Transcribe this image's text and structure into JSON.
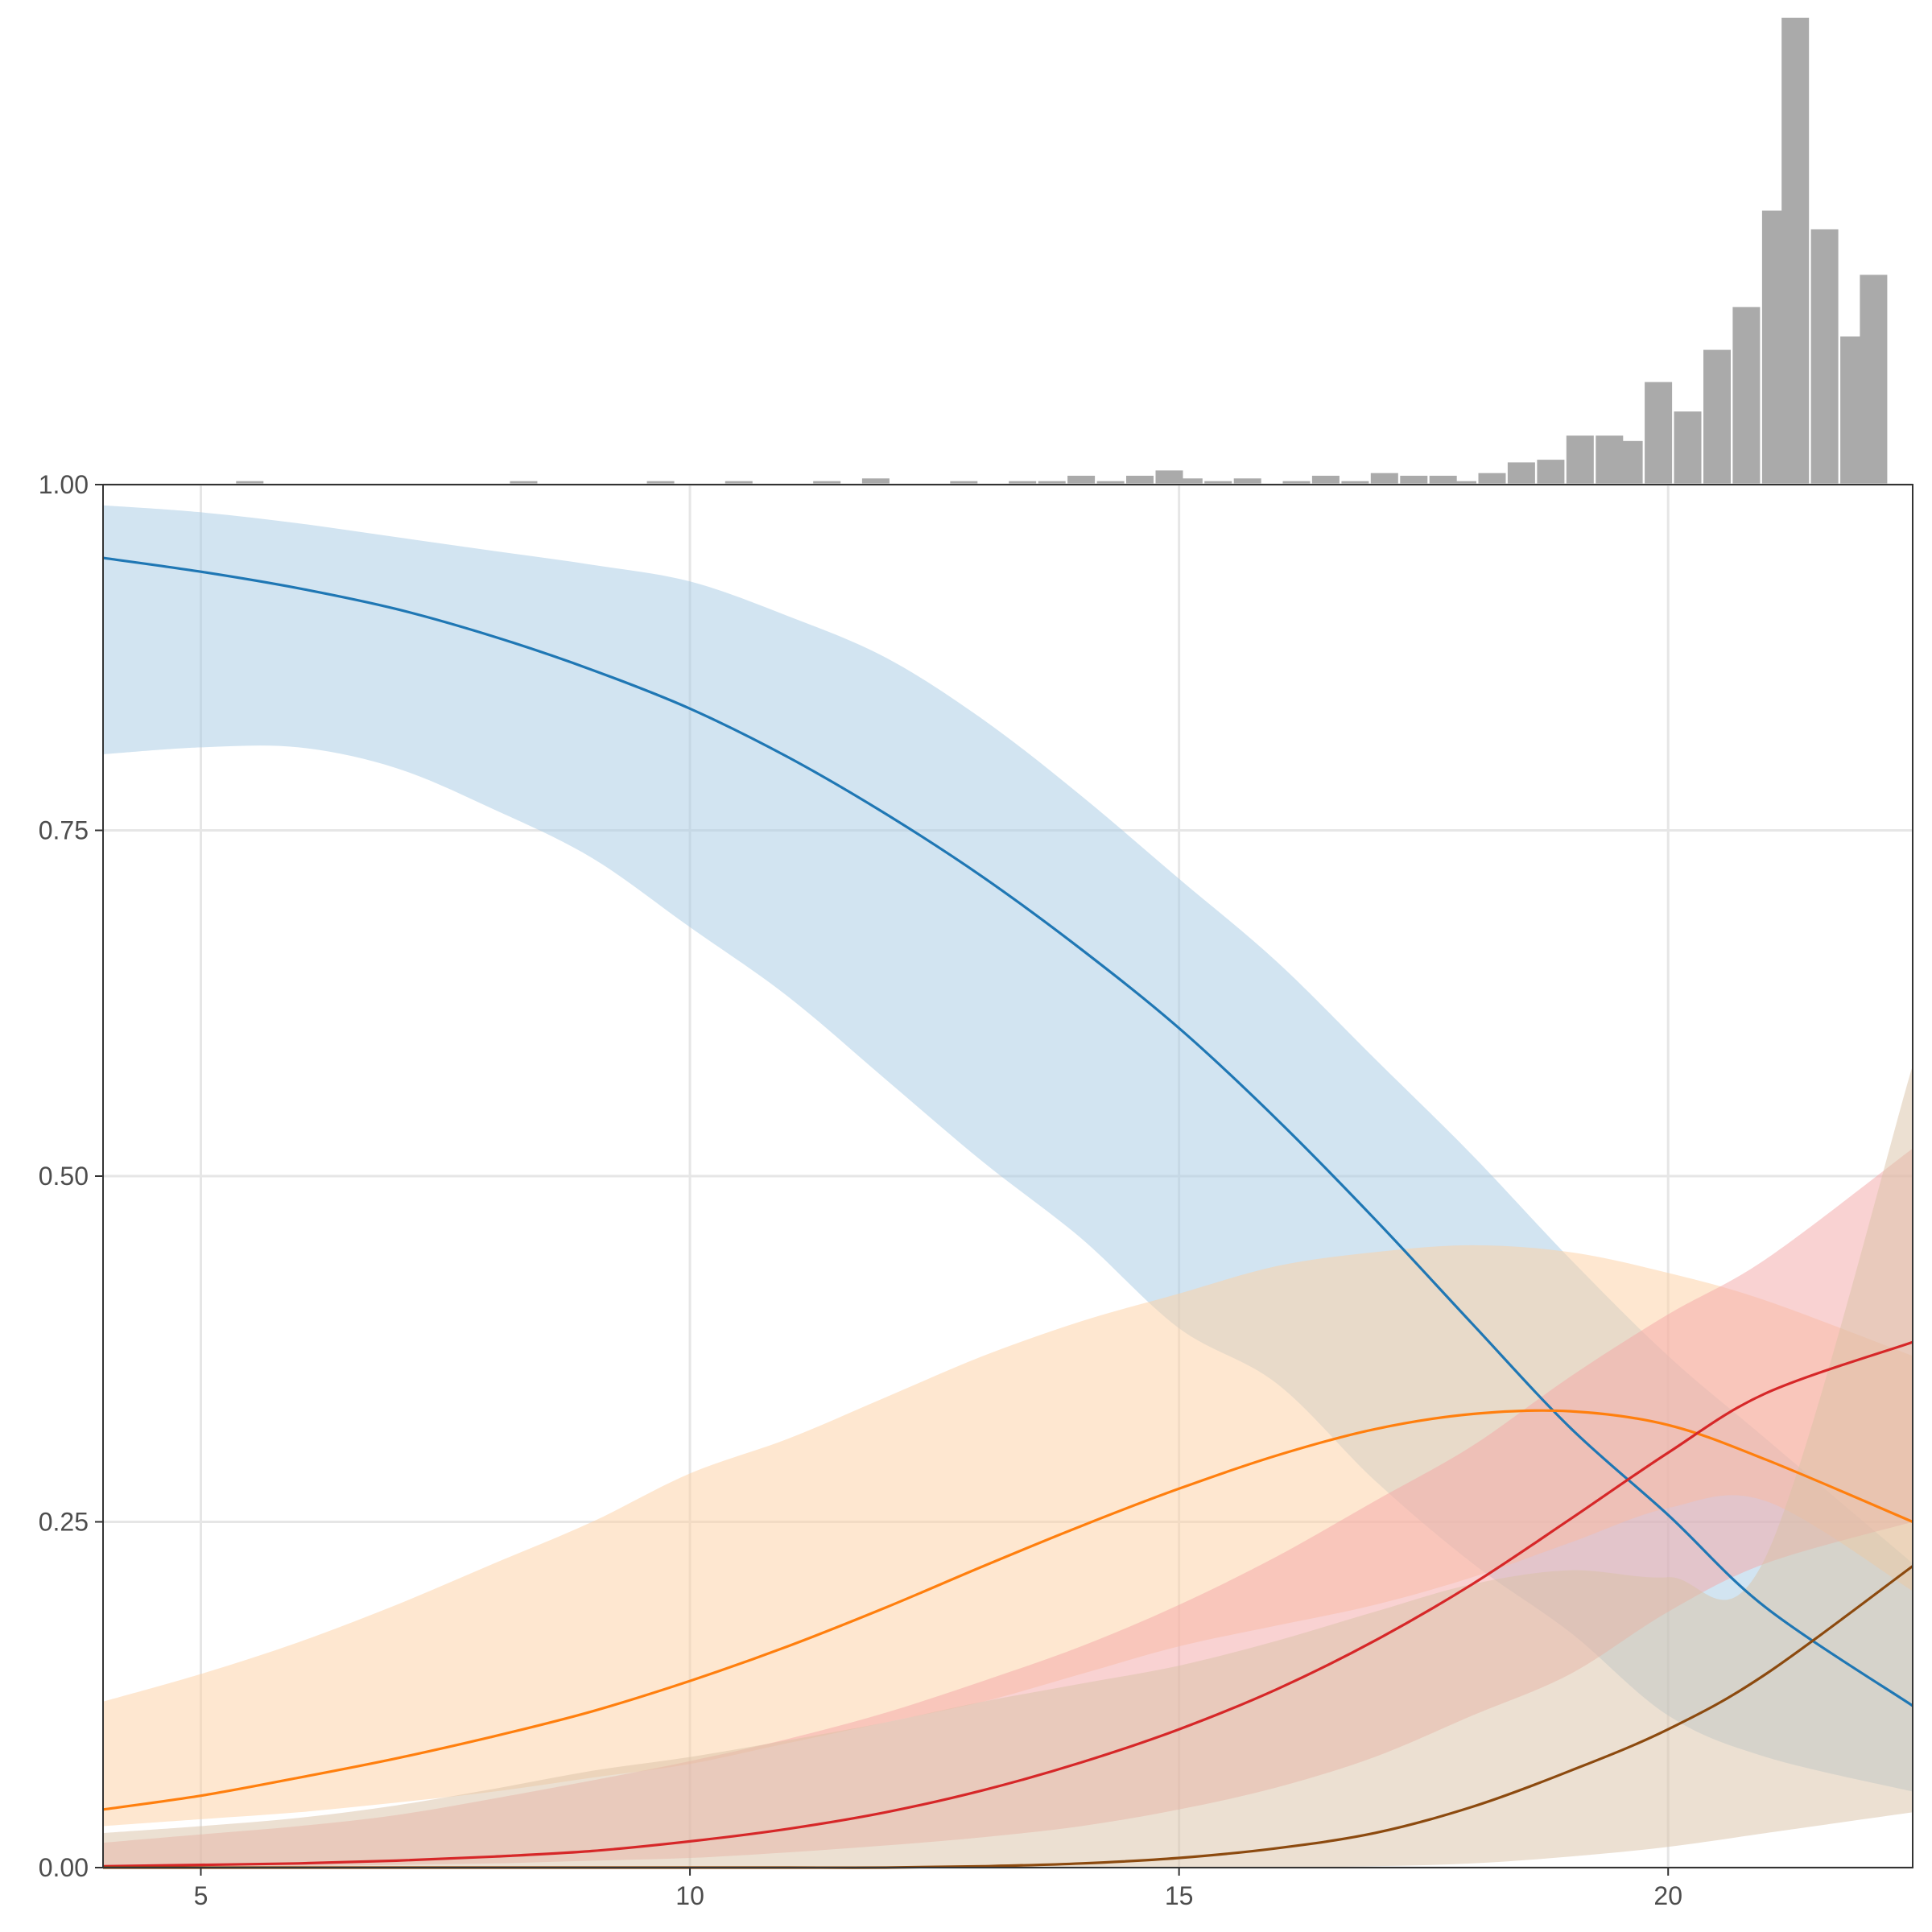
{
  "chart_data": {
    "type": "line",
    "title": "",
    "xlabel": "",
    "ylabel": "",
    "xlim": [
      4,
      22.5
    ],
    "ylim": [
      0,
      1
    ],
    "grid": true,
    "legend": "none",
    "x_ticks": [
      5,
      10,
      15,
      20
    ],
    "y_ticks": [
      0,
      0.25,
      0.5,
      0.75,
      1
    ],
    "x_tick_labels": [
      "5",
      "10",
      "15",
      "20"
    ],
    "y_tick_labels": [
      "0.00",
      "0.25",
      "0.50",
      "0.75",
      "1.00"
    ],
    "series": [
      {
        "color": "#1f77b4",
        "band_color": "#a6c9e3",
        "x": [
          4,
          5,
          6,
          7,
          8,
          9,
          10,
          11,
          12,
          13,
          14,
          15,
          16,
          17,
          18,
          19,
          20,
          21,
          22.5
        ],
        "y": [
          0.947,
          0.937,
          0.925,
          0.91,
          0.89,
          0.866,
          0.838,
          0.803,
          0.762,
          0.716,
          0.664,
          0.607,
          0.541,
          0.469,
          0.393,
          0.318,
          0.255,
          0.188,
          0.117
        ],
        "lower": [
          0.805,
          0.81,
          0.81,
          0.795,
          0.765,
          0.73,
          0.68,
          0.63,
          0.57,
          0.51,
          0.455,
          0.39,
          0.35,
          0.28,
          0.22,
          0.17,
          0.11,
          0.08,
          0.055
        ],
        "upper": [
          0.985,
          0.98,
          0.972,
          0.962,
          0.952,
          0.942,
          0.93,
          0.905,
          0.875,
          0.83,
          0.775,
          0.715,
          0.655,
          0.585,
          0.515,
          0.44,
          0.37,
          0.31,
          0.22
        ]
      },
      {
        "color": "#ff7f0e",
        "band_color": "#fdd0a2",
        "x": [
          4,
          5,
          6,
          7,
          8,
          9,
          10,
          11,
          12,
          13,
          14,
          15,
          16,
          17,
          18,
          19,
          20,
          21,
          22.5
        ],
        "y": [
          0.042,
          0.052,
          0.065,
          0.079,
          0.095,
          0.113,
          0.135,
          0.16,
          0.188,
          0.218,
          0.247,
          0.274,
          0.298,
          0.317,
          0.328,
          0.33,
          0.32,
          0.295,
          0.25
        ],
        "lower": [
          0.03,
          0.035,
          0.04,
          0.047,
          0.055,
          0.065,
          0.075,
          0.09,
          0.105,
          0.12,
          0.14,
          0.16,
          0.175,
          0.19,
          0.21,
          0.235,
          0.26,
          0.265,
          0.2
        ],
        "upper": [
          0.12,
          0.14,
          0.163,
          0.19,
          0.22,
          0.25,
          0.285,
          0.31,
          0.34,
          0.37,
          0.395,
          0.415,
          0.435,
          0.445,
          0.45,
          0.445,
          0.43,
          0.41,
          0.37
        ]
      },
      {
        "color": "#d62728",
        "band_color": "#f4a6a6",
        "x": [
          4,
          5,
          6,
          7,
          8,
          9,
          10,
          11,
          12,
          13,
          14,
          15,
          16,
          17,
          18,
          19,
          20,
          21,
          22.5
        ],
        "y": [
          0.001,
          0.002,
          0.003,
          0.005,
          0.008,
          0.012,
          0.019,
          0.028,
          0.04,
          0.056,
          0.076,
          0.1,
          0.129,
          0.164,
          0.205,
          0.252,
          0.3,
          0.343,
          0.38
        ],
        "lower": [
          0.0,
          0.0,
          0.001,
          0.002,
          0.003,
          0.005,
          0.007,
          0.011,
          0.016,
          0.022,
          0.03,
          0.042,
          0.058,
          0.08,
          0.11,
          0.14,
          0.185,
          0.22,
          0.25
        ],
        "upper": [
          0.018,
          0.024,
          0.03,
          0.038,
          0.05,
          0.063,
          0.077,
          0.093,
          0.112,
          0.135,
          0.16,
          0.19,
          0.225,
          0.265,
          0.305,
          0.355,
          0.4,
          0.44,
          0.52
        ]
      },
      {
        "color": "#8c4a0f",
        "band_color": "#d9c2a6",
        "x": [
          4,
          5,
          6,
          7,
          8,
          9,
          10,
          11,
          12,
          13,
          14,
          15,
          16,
          17,
          18,
          19,
          20,
          21,
          22.5
        ],
        "y": [
          0.0,
          0.0,
          0.0,
          0.0,
          0.0,
          0.0,
          0.0,
          0.0,
          0.0,
          0.001,
          0.003,
          0.007,
          0.014,
          0.025,
          0.044,
          0.07,
          0.1,
          0.14,
          0.218
        ],
        "lower": [
          0.0,
          0.0,
          0.0,
          0.0,
          0.0,
          0.0,
          0.0,
          0.0,
          0.0,
          0.0,
          0.0,
          0.0,
          0.0,
          0.001,
          0.003,
          0.008,
          0.015,
          0.025,
          0.04
        ],
        "upper": [
          0.025,
          0.03,
          0.036,
          0.045,
          0.057,
          0.07,
          0.08,
          0.092,
          0.105,
          0.12,
          0.133,
          0.146,
          0.164,
          0.185,
          0.205,
          0.215,
          0.21,
          0.225,
          0.58
        ]
      }
    ],
    "histogram": {
      "color": "#aaaaaa",
      "bin_width": 0.28,
      "bins": [
        {
          "x": 5.5,
          "count": 1
        },
        {
          "x": 8.3,
          "count": 1
        },
        {
          "x": 9.7,
          "count": 1
        },
        {
          "x": 10.5,
          "count": 1
        },
        {
          "x": 11.4,
          "count": 1
        },
        {
          "x": 11.9,
          "count": 2
        },
        {
          "x": 12.8,
          "count": 1
        },
        {
          "x": 13.4,
          "count": 1
        },
        {
          "x": 13.7,
          "count": 1
        },
        {
          "x": 14.0,
          "count": 3
        },
        {
          "x": 14.3,
          "count": 1
        },
        {
          "x": 14.6,
          "count": 3
        },
        {
          "x": 14.9,
          "count": 5
        },
        {
          "x": 15.1,
          "count": 2
        },
        {
          "x": 15.4,
          "count": 1
        },
        {
          "x": 15.7,
          "count": 2
        },
        {
          "x": 16.2,
          "count": 1
        },
        {
          "x": 16.5,
          "count": 3
        },
        {
          "x": 16.8,
          "count": 1
        },
        {
          "x": 17.1,
          "count": 4
        },
        {
          "x": 17.4,
          "count": 3
        },
        {
          "x": 17.7,
          "count": 3
        },
        {
          "x": 17.9,
          "count": 1
        },
        {
          "x": 18.2,
          "count": 4
        },
        {
          "x": 18.5,
          "count": 8
        },
        {
          "x": 18.8,
          "count": 9
        },
        {
          "x": 19.1,
          "count": 18
        },
        {
          "x": 19.4,
          "count": 18
        },
        {
          "x": 19.6,
          "count": 16
        },
        {
          "x": 19.9,
          "count": 38
        },
        {
          "x": 20.2,
          "count": 27
        },
        {
          "x": 20.5,
          "count": 50
        },
        {
          "x": 20.8,
          "count": 66
        },
        {
          "x": 21.1,
          "count": 102
        },
        {
          "x": 21.3,
          "count": 174
        },
        {
          "x": 21.6,
          "count": 95
        },
        {
          "x": 21.9,
          "count": 55
        },
        {
          "x": 22.1,
          "count": 78
        }
      ]
    }
  }
}
